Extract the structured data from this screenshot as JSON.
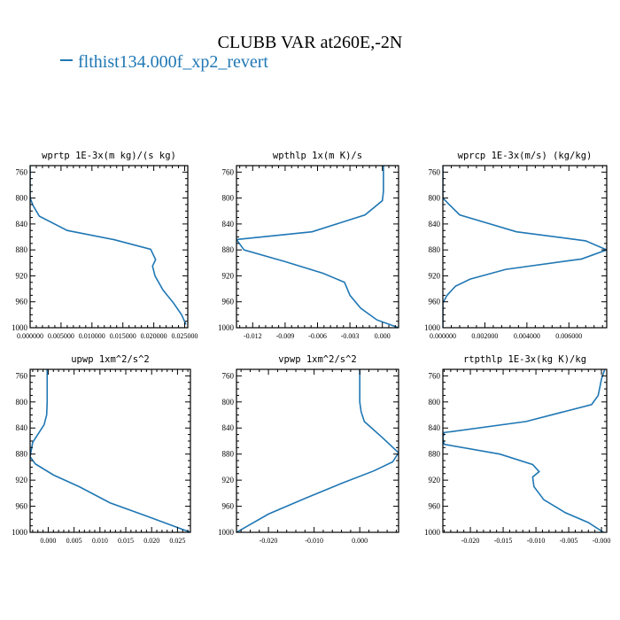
{
  "title": "CLUBB VAR at260E,-2N",
  "legend": {
    "label": "flthist134.000f_xp2_revert",
    "color": "#1f77b4"
  },
  "chart_data": [
    {
      "type": "line",
      "title": "wprtp  1E-3x(m kg)/(s kg)",
      "xlim": [
        0.0,
        0.0255
      ],
      "ylim": [
        1000,
        750
      ],
      "yticks": [
        760,
        800,
        840,
        880,
        920,
        960,
        1000
      ],
      "xticks": [
        0.0,
        0.005,
        0.01,
        0.015,
        0.02,
        0.025
      ],
      "xticklabels": [
        "0.000000",
        "0.005000",
        "0.010000",
        "0.015000",
        "0.020000",
        "0.025000"
      ],
      "series": [
        {
          "x": [
            0.0,
            0.0,
            0.0005,
            0.0015,
            0.006,
            0.0135,
            0.0195,
            0.0203,
            0.0198,
            0.0202,
            0.0215,
            0.0232,
            0.0245,
            0.0252
          ],
          "y": [
            750,
            800,
            812,
            828,
            850,
            864,
            879,
            895,
            905,
            920,
            942,
            962,
            980,
            995
          ]
        }
      ]
    },
    {
      "type": "line",
      "title": "wpthlp  1x(m K)/s",
      "xlim": [
        -0.0135,
        0.0015
      ],
      "ylim": [
        1000,
        750
      ],
      "yticks": [
        760,
        800,
        840,
        880,
        920,
        960,
        1000
      ],
      "xticks": [
        -0.012,
        -0.009,
        -0.006,
        -0.003,
        0.0
      ],
      "xticklabels": [
        "-0.012",
        "-0.009",
        "-0.006",
        "-0.003",
        "0.000"
      ],
      "series": [
        {
          "x": [
            0.0001,
            0.0001,
            0.0,
            -0.0016,
            -0.0065,
            -0.0135,
            -0.0128,
            -0.009,
            -0.0055,
            -0.0035,
            -0.003,
            -0.002,
            -0.0005,
            0.0015
          ],
          "y": [
            750,
            790,
            804,
            826,
            852,
            864,
            880,
            898,
            916,
            930,
            950,
            970,
            988,
            1000
          ]
        }
      ]
    },
    {
      "type": "line",
      "title": "wprcp  1E-3x(m/s) (kg/kg)",
      "xlim": [
        0.0,
        0.0078
      ],
      "ylim": [
        1000,
        750
      ],
      "yticks": [
        760,
        800,
        840,
        880,
        920,
        960,
        1000
      ],
      "xticks": [
        0.0,
        0.002,
        0.004,
        0.006
      ],
      "xticklabels": [
        "0.000000",
        "0.002000",
        "0.004000",
        "0.006000"
      ],
      "series": [
        {
          "x": [
            0.0,
            0.0,
            0.0003,
            0.0008,
            0.0035,
            0.0068,
            0.0078,
            0.0066,
            0.003,
            0.0013,
            0.0006,
            0.0002,
            0.0,
            0.0
          ],
          "y": [
            750,
            800,
            810,
            826,
            852,
            866,
            880,
            894,
            910,
            925,
            936,
            950,
            962,
            1000
          ]
        }
      ]
    },
    {
      "type": "line",
      "title": "upwp  1xm^2/s^2",
      "xlim": [
        -0.0035,
        0.0275
      ],
      "ylim": [
        1000,
        750
      ],
      "yticks": [
        760,
        800,
        840,
        880,
        920,
        960,
        1000
      ],
      "xticks": [
        0.0,
        0.005,
        0.01,
        0.015,
        0.02,
        0.025
      ],
      "xticklabels": [
        "0.000",
        "0.005",
        "0.010",
        "0.015",
        "0.020",
        "0.025"
      ],
      "series": [
        {
          "x": [
            -0.0002,
            -0.0002,
            -0.0003,
            -0.0008,
            -0.003,
            -0.0035,
            -0.0025,
            0.001,
            0.006,
            0.012,
            0.019,
            0.0275
          ],
          "y": [
            750,
            800,
            820,
            835,
            862,
            884,
            895,
            912,
            930,
            955,
            975,
            1000
          ]
        }
      ]
    },
    {
      "type": "line",
      "title": "vpwp  1xm^2/s^2",
      "xlim": [
        -0.027,
        0.0085
      ],
      "ylim": [
        1000,
        750
      ],
      "yticks": [
        760,
        800,
        840,
        880,
        920,
        960,
        1000
      ],
      "xticks": [
        -0.02,
        -0.01,
        0.0
      ],
      "xticklabels": [
        "-0.020",
        "-0.010",
        "0.000"
      ],
      "series": [
        {
          "x": [
            0.0,
            0.0,
            0.0003,
            0.001,
            0.005,
            0.0085,
            0.0072,
            0.003,
            -0.004,
            -0.012,
            -0.02,
            -0.027
          ],
          "y": [
            750,
            800,
            815,
            830,
            855,
            878,
            892,
            906,
            925,
            948,
            972,
            1000
          ]
        }
      ]
    },
    {
      "type": "line",
      "title": "rtpthlp  1E-3x(kg K)/kg",
      "xlim": [
        -0.0242,
        0.0008
      ],
      "ylim": [
        1000,
        750
      ],
      "yticks": [
        760,
        800,
        840,
        880,
        920,
        960,
        1000
      ],
      "xticks": [
        -0.02,
        -0.015,
        -0.01,
        -0.005,
        0.0
      ],
      "xticklabels": [
        "-0.020",
        "-0.015",
        "-0.010",
        "-0.005",
        "-0.000"
      ],
      "series": [
        {
          "x": [
            0.0005,
            0.0,
            -0.0005,
            -0.0015,
            -0.0115,
            -0.024,
            -0.0242,
            -0.024,
            -0.0155,
            -0.0105,
            -0.0095,
            -0.0105,
            -0.0103,
            -0.0088,
            -0.0055,
            -0.002,
            0.0003
          ],
          "y": [
            750,
            765,
            790,
            804,
            830,
            847,
            855,
            865,
            880,
            896,
            907,
            915,
            930,
            950,
            970,
            985,
            1000
          ]
        }
      ]
    }
  ]
}
